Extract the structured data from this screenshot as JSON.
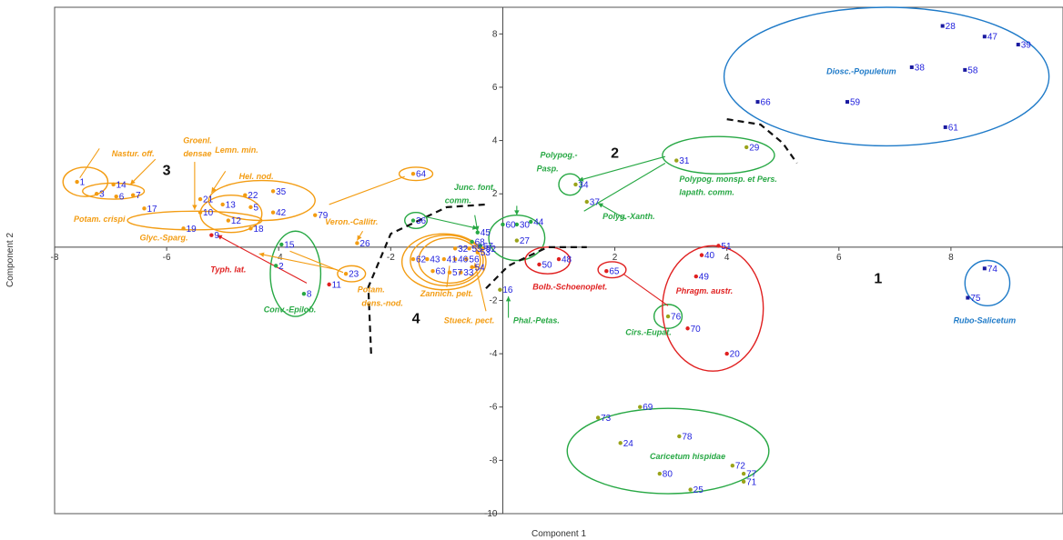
{
  "chart_data": {
    "type": "scatter",
    "xlabel": "Component 1",
    "ylabel": "Component 2",
    "xlim": [
      -8,
      10
    ],
    "ylim": [
      -10,
      9
    ],
    "xticks": [
      -8,
      -6,
      -4,
      -2,
      2,
      4,
      6,
      8
    ],
    "yticks": [
      -10,
      -8,
      -6,
      -4,
      -2,
      2,
      4,
      6,
      8
    ],
    "grid": false,
    "colors": {
      "orange": "#f39c12",
      "green": "#27a844",
      "red": "#e02020",
      "blue": "#1e7ac8",
      "pointLabel": "#2222dd",
      "darkBlue": "#1a1aa0",
      "olive": "#9aa31a"
    },
    "points": [
      {
        "id": "1",
        "x": -7.6,
        "y": 2.45,
        "c": "orange"
      },
      {
        "id": "3",
        "x": -7.25,
        "y": 2.0,
        "c": "orange"
      },
      {
        "id": "14",
        "x": -6.95,
        "y": 2.35,
        "c": "orange"
      },
      {
        "id": "7",
        "x": -6.6,
        "y": 1.95,
        "c": "orange"
      },
      {
        "id": "6",
        "x": -6.9,
        "y": 1.9,
        "c": "orange"
      },
      {
        "id": "17",
        "x": -6.4,
        "y": 1.45,
        "c": "orange"
      },
      {
        "id": "21",
        "x": -5.4,
        "y": 1.8,
        "c": "orange"
      },
      {
        "id": "10",
        "x": -5.4,
        "y": 1.3,
        "c": "orange"
      },
      {
        "id": "13",
        "x": -5.0,
        "y": 1.6,
        "c": "orange"
      },
      {
        "id": "22",
        "x": -4.6,
        "y": 1.95,
        "c": "orange"
      },
      {
        "id": "5",
        "x": -4.5,
        "y": 1.5,
        "c": "orange"
      },
      {
        "id": "12",
        "x": -4.9,
        "y": 1.0,
        "c": "orange"
      },
      {
        "id": "19",
        "x": -5.7,
        "y": 0.7,
        "c": "orange"
      },
      {
        "id": "9",
        "x": -5.2,
        "y": 0.45,
        "c": "red"
      },
      {
        "id": "18",
        "x": -4.5,
        "y": 0.7,
        "c": "orange"
      },
      {
        "id": "35",
        "x": -4.1,
        "y": 2.1,
        "c": "orange"
      },
      {
        "id": "42",
        "x": -4.1,
        "y": 1.3,
        "c": "orange"
      },
      {
        "id": "79",
        "x": -3.35,
        "y": 1.2,
        "c": "orange"
      },
      {
        "id": "64",
        "x": -1.6,
        "y": 2.75,
        "c": "orange"
      },
      {
        "id": "26",
        "x": -2.6,
        "y": 0.15,
        "c": "orange"
      },
      {
        "id": "23",
        "x": -2.8,
        "y": -1.0,
        "c": "orange"
      },
      {
        "id": "11",
        "x": -3.1,
        "y": -1.4,
        "c": "red"
      },
      {
        "id": "15",
        "x": -3.95,
        "y": 0.1,
        "c": "green"
      },
      {
        "id": "2",
        "x": -4.05,
        "y": -0.7,
        "c": "green"
      },
      {
        "id": "8",
        "x": -3.55,
        "y": -1.75,
        "c": "green"
      },
      {
        "id": "36",
        "x": -1.6,
        "y": 1.0,
        "c": "green"
      },
      {
        "id": "62",
        "x": -1.6,
        "y": -0.45,
        "c": "orange"
      },
      {
        "id": "43",
        "x": -1.35,
        "y": -0.45,
        "c": "orange"
      },
      {
        "id": "41",
        "x": -1.05,
        "y": -0.45,
        "c": "orange"
      },
      {
        "id": "46",
        "x": -0.85,
        "y": -0.45,
        "c": "orange"
      },
      {
        "id": "56",
        "x": -0.65,
        "y": -0.45,
        "c": "orange"
      },
      {
        "id": "32",
        "x": -0.85,
        "y": -0.05,
        "c": "orange"
      },
      {
        "id": "55",
        "x": -0.6,
        "y": -0.05,
        "c": "orange"
      },
      {
        "id": "53",
        "x": -0.45,
        "y": -0.2,
        "c": "orange"
      },
      {
        "id": "52",
        "x": -0.35,
        "y": -0.05,
        "c": "orange"
      },
      {
        "id": "54",
        "x": -0.55,
        "y": -0.75,
        "c": "orange"
      },
      {
        "id": "63",
        "x": -1.25,
        "y": -0.9,
        "c": "orange"
      },
      {
        "id": "57",
        "x": -0.95,
        "y": -0.95,
        "c": "orange"
      },
      {
        "id": "33",
        "x": -0.75,
        "y": -0.95,
        "c": "orange"
      },
      {
        "id": "45",
        "x": -0.45,
        "y": 0.55,
        "c": "green"
      },
      {
        "id": "68",
        "x": -0.55,
        "y": 0.2,
        "c": "green"
      },
      {
        "id": "67",
        "x": -0.4,
        "y": 0.05,
        "c": "green"
      },
      {
        "id": "60",
        "x": 0.0,
        "y": 0.85,
        "c": "green"
      },
      {
        "id": "30",
        "x": 0.25,
        "y": 0.85,
        "c": "green"
      },
      {
        "id": "44",
        "x": 0.5,
        "y": 0.95,
        "c": "green"
      },
      {
        "id": "27",
        "x": 0.25,
        "y": 0.25,
        "c": "olive"
      },
      {
        "id": "16",
        "x": -0.05,
        "y": -1.6,
        "c": "olive"
      },
      {
        "id": "34",
        "x": 1.3,
        "y": 2.35,
        "c": "olive"
      },
      {
        "id": "37",
        "x": 1.5,
        "y": 1.7,
        "c": "olive"
      },
      {
        "id": "31",
        "x": 3.1,
        "y": 3.25,
        "c": "olive"
      },
      {
        "id": "29",
        "x": 4.35,
        "y": 3.75,
        "c": "olive"
      },
      {
        "id": "50",
        "x": 0.65,
        "y": -0.65,
        "c": "red"
      },
      {
        "id": "48",
        "x": 1.0,
        "y": -0.45,
        "c": "red"
      },
      {
        "id": "65",
        "x": 1.85,
        "y": -0.9,
        "c": "red"
      },
      {
        "id": "51",
        "x": 3.85,
        "y": 0.05,
        "c": "red"
      },
      {
        "id": "40",
        "x": 3.55,
        "y": -0.3,
        "c": "red"
      },
      {
        "id": "49",
        "x": 3.45,
        "y": -1.1,
        "c": "red"
      },
      {
        "id": "70",
        "x": 3.3,
        "y": -3.05,
        "c": "red"
      },
      {
        "id": "20",
        "x": 4.0,
        "y": -4.0,
        "c": "red"
      },
      {
        "id": "76",
        "x": 2.95,
        "y": -2.6,
        "c": "olive"
      },
      {
        "id": "66",
        "x": 4.55,
        "y": 5.45,
        "c": "darkBlue"
      },
      {
        "id": "28",
        "x": 7.85,
        "y": 8.3,
        "c": "darkBlue"
      },
      {
        "id": "47",
        "x": 8.6,
        "y": 7.9,
        "c": "darkBlue"
      },
      {
        "id": "39",
        "x": 9.2,
        "y": 7.6,
        "c": "darkBlue"
      },
      {
        "id": "38",
        "x": 7.3,
        "y": 6.75,
        "c": "darkBlue"
      },
      {
        "id": "58",
        "x": 8.25,
        "y": 6.65,
        "c": "darkBlue"
      },
      {
        "id": "59",
        "x": 6.15,
        "y": 5.45,
        "c": "darkBlue"
      },
      {
        "id": "61",
        "x": 7.9,
        "y": 4.5,
        "c": "darkBlue"
      },
      {
        "id": "74",
        "x": 8.6,
        "y": -0.8,
        "c": "darkBlue"
      },
      {
        "id": "75",
        "x": 8.3,
        "y": -1.9,
        "c": "darkBlue"
      },
      {
        "id": "69",
        "x": 2.45,
        "y": -6.0,
        "c": "olive"
      },
      {
        "id": "73",
        "x": 1.7,
        "y": -6.4,
        "c": "olive"
      },
      {
        "id": "24",
        "x": 2.1,
        "y": -7.35,
        "c": "olive"
      },
      {
        "id": "78",
        "x": 3.15,
        "y": -7.1,
        "c": "olive"
      },
      {
        "id": "72",
        "x": 4.1,
        "y": -8.2,
        "c": "olive"
      },
      {
        "id": "77",
        "x": 4.3,
        "y": -8.5,
        "c": "olive"
      },
      {
        "id": "71",
        "x": 4.3,
        "y": -8.8,
        "c": "olive"
      },
      {
        "id": "80",
        "x": 2.8,
        "y": -8.5,
        "c": "olive"
      },
      {
        "id": "25",
        "x": 3.35,
        "y": -9.1,
        "c": "olive"
      }
    ],
    "ellipses": [
      {
        "cx": 6.85,
        "cy": 6.4,
        "rx": 2.9,
        "ry": 2.6,
        "c": "blue"
      },
      {
        "cx": 8.65,
        "cy": -1.35,
        "rx": 0.4,
        "ry": 0.85,
        "c": "blue"
      },
      {
        "cx": 3.85,
        "cy": 3.45,
        "rx": 1.0,
        "ry": 0.7,
        "c": "green"
      },
      {
        "cx": 1.2,
        "cy": 2.35,
        "rx": 0.2,
        "ry": 0.4,
        "c": "green"
      },
      {
        "cx": 0.25,
        "cy": 0.35,
        "rx": 0.5,
        "ry": 0.85,
        "c": "green"
      },
      {
        "cx": -1.55,
        "cy": 1.0,
        "rx": 0.2,
        "ry": 0.3,
        "c": "green"
      },
      {
        "cx": -3.7,
        "cy": -1.0,
        "rx": 0.45,
        "ry": 1.6,
        "c": "green"
      },
      {
        "cx": 2.95,
        "cy": -2.6,
        "rx": 0.25,
        "ry": 0.45,
        "c": "green"
      },
      {
        "cx": 2.95,
        "cy": -7.65,
        "rx": 1.8,
        "ry": 1.6,
        "c": "green"
      },
      {
        "cx": 3.75,
        "cy": -2.3,
        "rx": 0.9,
        "ry": 2.35,
        "c": "red"
      },
      {
        "cx": 0.8,
        "cy": -0.5,
        "rx": 0.4,
        "ry": 0.5,
        "c": "red"
      },
      {
        "cx": 1.95,
        "cy": -0.85,
        "rx": 0.25,
        "ry": 0.3,
        "c": "red"
      },
      {
        "cx": -7.45,
        "cy": 2.45,
        "rx": 0.4,
        "ry": 0.55,
        "c": "orange"
      },
      {
        "cx": -6.95,
        "cy": 2.1,
        "rx": 0.55,
        "ry": 0.3,
        "c": "orange"
      },
      {
        "cx": -5.5,
        "cy": 1.0,
        "rx": 1.2,
        "ry": 0.35,
        "c": "orange"
      },
      {
        "cx": -4.85,
        "cy": 1.25,
        "rx": 0.55,
        "ry": 0.7,
        "c": "orange"
      },
      {
        "cx": -4.3,
        "cy": 1.75,
        "rx": 0.95,
        "ry": 0.75,
        "c": "orange"
      },
      {
        "cx": -1.55,
        "cy": 2.75,
        "rx": 0.3,
        "ry": 0.25,
        "c": "orange"
      },
      {
        "cx": -2.7,
        "cy": -1.0,
        "rx": 0.25,
        "ry": 0.3,
        "c": "orange"
      },
      {
        "cx": -0.95,
        "cy": -0.5,
        "rx": 0.55,
        "ry": 0.85,
        "c": "orange"
      },
      {
        "cx": -1.0,
        "cy": -0.5,
        "rx": 0.65,
        "ry": 0.95,
        "c": "orange"
      },
      {
        "cx": -1.05,
        "cy": -0.55,
        "rx": 0.75,
        "ry": 1.05,
        "c": "orange"
      }
    ],
    "lines": [
      {
        "from": [
          -2.95,
          -0.85
        ],
        "to": [
          -4.35,
          -0.25
        ],
        "c": "orange",
        "arrow": true
      },
      {
        "from": [
          -1.75,
          2.65
        ],
        "to": [
          -3.1,
          1.6
        ],
        "c": "orange",
        "arrow": false
      },
      {
        "from": [
          -2.5,
          0.6
        ],
        "to": [
          -2.6,
          0.25
        ],
        "c": "orange",
        "arrow": true
      },
      {
        "from": [
          -2.85,
          -0.95
        ],
        "to": [
          -3.8,
          -0.15
        ],
        "c": "orange",
        "arrow": false
      },
      {
        "from": [
          -6.2,
          3.3
        ],
        "to": [
          -6.65,
          2.35
        ],
        "c": "orange",
        "arrow": true
      },
      {
        "from": [
          -5.5,
          3.2
        ],
        "to": [
          -5.5,
          1.4
        ],
        "c": "orange",
        "arrow": true
      },
      {
        "from": [
          -4.95,
          2.85
        ],
        "to": [
          -5.2,
          2.05
        ],
        "c": "orange",
        "arrow": true
      },
      {
        "from": [
          -7.2,
          3.7
        ],
        "to": [
          -7.55,
          2.6
        ],
        "c": "orange",
        "arrow": false
      },
      {
        "from": [
          -0.3,
          -2.4
        ],
        "to": [
          -0.5,
          -0.6
        ],
        "c": "orange",
        "arrow": true
      },
      {
        "from": [
          -1.0,
          -1.5
        ],
        "to": [
          -0.95,
          -0.7
        ],
        "c": "orange",
        "arrow": false
      },
      {
        "from": [
          -3.5,
          -1.35
        ],
        "to": [
          -5.1,
          0.45
        ],
        "c": "red",
        "arrow": true
      },
      {
        "from": [
          -1.4,
          1.15
        ],
        "to": [
          -0.45,
          0.7
        ],
        "c": "green",
        "arrow": true
      },
      {
        "from": [
          -0.5,
          1.2
        ],
        "to": [
          -0.45,
          0.6
        ],
        "c": "green",
        "arrow": true
      },
      {
        "from": [
          0.25,
          1.55
        ],
        "to": [
          0.25,
          1.2
        ],
        "c": "green",
        "arrow": true
      },
      {
        "from": [
          2.9,
          3.4
        ],
        "to": [
          1.35,
          2.5
        ],
        "c": "green",
        "arrow": true
      },
      {
        "from": [
          2.9,
          3.15
        ],
        "to": [
          1.45,
          1.35
        ],
        "c": "green",
        "arrow": false
      },
      {
        "from": [
          2.2,
          1.05
        ],
        "to": [
          1.7,
          1.65
        ],
        "c": "green",
        "arrow": true
      },
      {
        "from": [
          0.1,
          -2.65
        ],
        "to": [
          0.1,
          -1.85
        ],
        "c": "green",
        "arrow": true
      },
      {
        "from": [
          2.15,
          -1.0
        ],
        "to": [
          2.95,
          -2.2
        ],
        "c": "red",
        "arrow": false
      }
    ],
    "dashedArcs": [
      {
        "path": [
          [
            -2.35,
            -4.0
          ],
          [
            -2.4,
            -1.5
          ],
          [
            -2.0,
            0.5
          ],
          [
            -1.0,
            1.5
          ],
          [
            -0.3,
            1.6
          ]
        ]
      },
      {
        "path": [
          [
            -0.3,
            -1.55
          ],
          [
            0.1,
            -0.7
          ],
          [
            0.8,
            0.0
          ],
          [
            1.5,
            0.0
          ]
        ]
      },
      {
        "path": [
          [
            4.0,
            4.8
          ],
          [
            4.6,
            4.6
          ],
          [
            5.0,
            3.9
          ],
          [
            5.25,
            3.15
          ]
        ]
      }
    ],
    "groupLabels": [
      {
        "text": "Diosc.-Populetum",
        "x": 6.4,
        "y": 6.5,
        "c": "blue",
        "anchor": "middle"
      },
      {
        "text": "Rubo-Salicetum",
        "x": 8.6,
        "y": -2.85,
        "c": "blue",
        "anchor": "middle"
      },
      {
        "text": "Polypog. monsp. et Pers.",
        "x": 3.15,
        "y": 2.45,
        "c": "green",
        "anchor": "start"
      },
      {
        "text": "lapath. comm.",
        "x": 3.15,
        "y": 1.95,
        "c": "green",
        "anchor": "start"
      },
      {
        "text": "Polypog.-",
        "x": 1.0,
        "y": 3.35,
        "c": "green",
        "anchor": "middle"
      },
      {
        "text": "Pasp.",
        "x": 0.8,
        "y": 2.85,
        "c": "green",
        "anchor": "middle"
      },
      {
        "text": "Junc. font.",
        "x": -0.5,
        "y": 2.15,
        "c": "green",
        "anchor": "middle"
      },
      {
        "text": "comm.",
        "x": -0.8,
        "y": 1.65,
        "c": "green",
        "anchor": "middle"
      },
      {
        "text": "Polyg.-Xanth.",
        "x": 2.25,
        "y": 1.05,
        "c": "green",
        "anchor": "middle"
      },
      {
        "text": "Bolb.-Schoenoplet.",
        "x": 1.2,
        "y": -1.6,
        "c": "red",
        "anchor": "middle"
      },
      {
        "text": "Phal.-Petas.",
        "x": 0.6,
        "y": -2.85,
        "c": "green",
        "anchor": "middle"
      },
      {
        "text": "Phragm. austr.",
        "x": 3.6,
        "y": -1.75,
        "c": "red",
        "anchor": "middle"
      },
      {
        "text": "Cirs.-Eupat.",
        "x": 2.6,
        "y": -3.3,
        "c": "green",
        "anchor": "middle"
      },
      {
        "text": "Caricetum hispidae",
        "x": 3.3,
        "y": -7.95,
        "c": "green",
        "anchor": "middle"
      },
      {
        "text": "Stueck. pect.",
        "x": -0.6,
        "y": -2.85,
        "c": "orange",
        "anchor": "middle"
      },
      {
        "text": "Zannich. pelt.",
        "x": -1.0,
        "y": -1.85,
        "c": "orange",
        "anchor": "middle"
      },
      {
        "text": "Potam.",
        "x": -2.35,
        "y": -1.7,
        "c": "orange",
        "anchor": "middle"
      },
      {
        "text": "dens.-nod.",
        "x": -2.15,
        "y": -2.2,
        "c": "orange",
        "anchor": "middle"
      },
      {
        "text": "Veron.-Callitr.",
        "x": -2.7,
        "y": 0.85,
        "c": "orange",
        "anchor": "middle"
      },
      {
        "text": "Conv.-Epilob.",
        "x": -3.8,
        "y": -2.45,
        "c": "green",
        "anchor": "middle"
      },
      {
        "text": "Typh. lat.",
        "x": -4.9,
        "y": -0.95,
        "c": "red",
        "anchor": "middle"
      },
      {
        "text": "Glyc.-Sparg.",
        "x": -6.05,
        "y": 0.25,
        "c": "orange",
        "anchor": "middle"
      },
      {
        "text": "Potam. crispi",
        "x": -7.2,
        "y": 0.95,
        "c": "orange",
        "anchor": "middle"
      },
      {
        "text": "Hel. nod.",
        "x": -4.4,
        "y": 2.55,
        "c": "orange",
        "anchor": "middle"
      },
      {
        "text": "Lemn. min.",
        "x": -4.75,
        "y": 3.55,
        "c": "orange",
        "anchor": "middle"
      },
      {
        "text": "Groenl.",
        "x": -5.45,
        "y": 3.9,
        "c": "orange",
        "anchor": "middle"
      },
      {
        "text": "densae",
        "x": -5.45,
        "y": 3.4,
        "c": "orange",
        "anchor": "middle"
      },
      {
        "text": "Nastur. off.",
        "x": -6.6,
        "y": 3.4,
        "c": "orange",
        "anchor": "middle"
      }
    ],
    "clusterNumbers": [
      {
        "text": "1",
        "x": 6.7,
        "y": -1.35
      },
      {
        "text": "2",
        "x": 2.0,
        "y": 3.35
      },
      {
        "text": "3",
        "x": -6.0,
        "y": 2.7
      },
      {
        "text": "4",
        "x": -1.55,
        "y": -2.85
      }
    ]
  }
}
